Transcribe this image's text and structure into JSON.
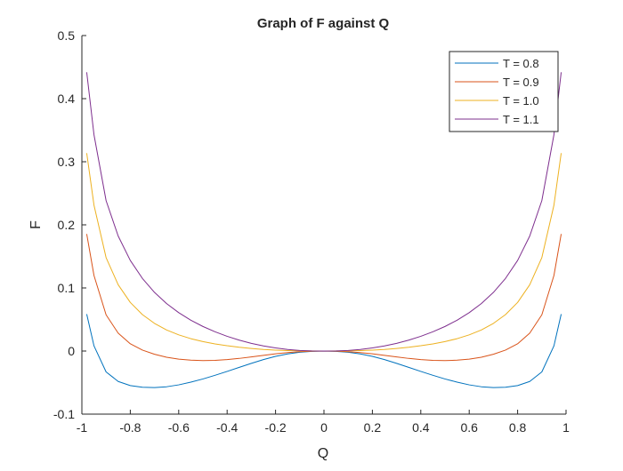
{
  "chart_data": {
    "type": "line",
    "title": "Graph of F against Q",
    "xlabel": "Q",
    "ylabel": "F",
    "xlim": [
      -1,
      1
    ],
    "ylim": [
      -0.1,
      0.5
    ],
    "xticks": [
      "-1",
      "-0.8",
      "-0.6",
      "-0.4",
      "-0.2",
      "0",
      "0.2",
      "0.4",
      "0.6",
      "0.8",
      "1"
    ],
    "yticks": [
      "-0.1",
      "0",
      "0.1",
      "0.2",
      "0.3",
      "0.4",
      "0.5"
    ],
    "legend_position": "top-right",
    "grid": false,
    "x": [
      -0.98,
      -0.95,
      -0.9,
      -0.85,
      -0.8,
      -0.75,
      -0.7,
      -0.65,
      -0.6,
      -0.55,
      -0.5,
      -0.45,
      -0.4,
      -0.35,
      -0.3,
      -0.25,
      -0.2,
      -0.15,
      -0.1,
      -0.05,
      0,
      0.05,
      0.1,
      0.15,
      0.2,
      0.25,
      0.3,
      0.35,
      0.4,
      0.45,
      0.5,
      0.55,
      0.6,
      0.65,
      0.7,
      0.75,
      0.8,
      0.85,
      0.9,
      0.95,
      0.98
    ],
    "series": [
      {
        "name": "T = 0.8",
        "color": "#0072BD",
        "values": [
          0.0585,
          0.0082,
          -0.0331,
          -0.0482,
          -0.0548,
          -0.0574,
          -0.058,
          -0.0566,
          -0.0536,
          -0.0493,
          -0.0443,
          -0.0385,
          -0.0323,
          -0.0259,
          -0.0195,
          -0.0136,
          -0.0084,
          -0.0046,
          -0.002,
          -0.0005,
          0,
          -0.0005,
          -0.002,
          -0.0046,
          -0.0084,
          -0.0136,
          -0.0195,
          -0.0259,
          -0.0323,
          -0.0385,
          -0.0443,
          -0.0493,
          -0.0536,
          -0.0566,
          -0.058,
          -0.0574,
          -0.0548,
          -0.0482,
          -0.0331,
          0.0082,
          0.0585
        ]
      },
      {
        "name": "T = 0.9",
        "color": "#D95319",
        "values": [
          0.1855,
          0.1197,
          0.0574,
          0.0283,
          0.0115,
          0.0015,
          -0.0051,
          -0.0098,
          -0.0128,
          -0.0145,
          -0.0152,
          -0.0148,
          -0.0136,
          -0.0117,
          -0.0093,
          -0.0068,
          -0.0044,
          -0.0025,
          -0.0011,
          -0.0003,
          0,
          -0.0003,
          -0.0011,
          -0.0025,
          -0.0044,
          -0.0068,
          -0.0093,
          -0.0117,
          -0.0136,
          -0.0148,
          -0.0152,
          -0.0145,
          -0.0128,
          -0.0098,
          -0.0051,
          0.0015,
          0.0115,
          0.0283,
          0.0574,
          0.1197,
          0.1855
        ]
      },
      {
        "name": "T = 1.0",
        "color": "#EDB120",
        "values": [
          0.3136,
          0.2312,
          0.148,
          0.105,
          0.077,
          0.0577,
          0.0438,
          0.0334,
          0.0256,
          0.0196,
          0.015,
          0.0113,
          0.0084,
          0.006,
          0.0041,
          0.0025,
          0.0014,
          0.0007,
          0.0003,
          0.0001,
          0,
          0.0001,
          0.0003,
          0.0007,
          0.0014,
          0.0025,
          0.0041,
          0.006,
          0.0084,
          0.0113,
          0.015,
          0.0196,
          0.0256,
          0.0334,
          0.0438,
          0.0577,
          0.077,
          0.105,
          0.148,
          0.2312,
          0.3136
        ]
      },
      {
        "name": "T = 1.1",
        "color": "#7E2F8E",
        "values": [
          0.4418,
          0.3428,
          0.2384,
          0.1822,
          0.1436,
          0.1151,
          0.0929,
          0.0752,
          0.0608,
          0.0489,
          0.0389,
          0.0305,
          0.0233,
          0.0173,
          0.0122,
          0.0081,
          0.0049,
          0.0025,
          0.0009,
          0.0002,
          0,
          0.0002,
          0.0009,
          0.0025,
          0.0049,
          0.0081,
          0.0122,
          0.0173,
          0.0233,
          0.0305,
          0.0389,
          0.0489,
          0.0608,
          0.0752,
          0.0929,
          0.1151,
          0.1436,
          0.1822,
          0.2384,
          0.3428,
          0.4418
        ]
      }
    ]
  }
}
